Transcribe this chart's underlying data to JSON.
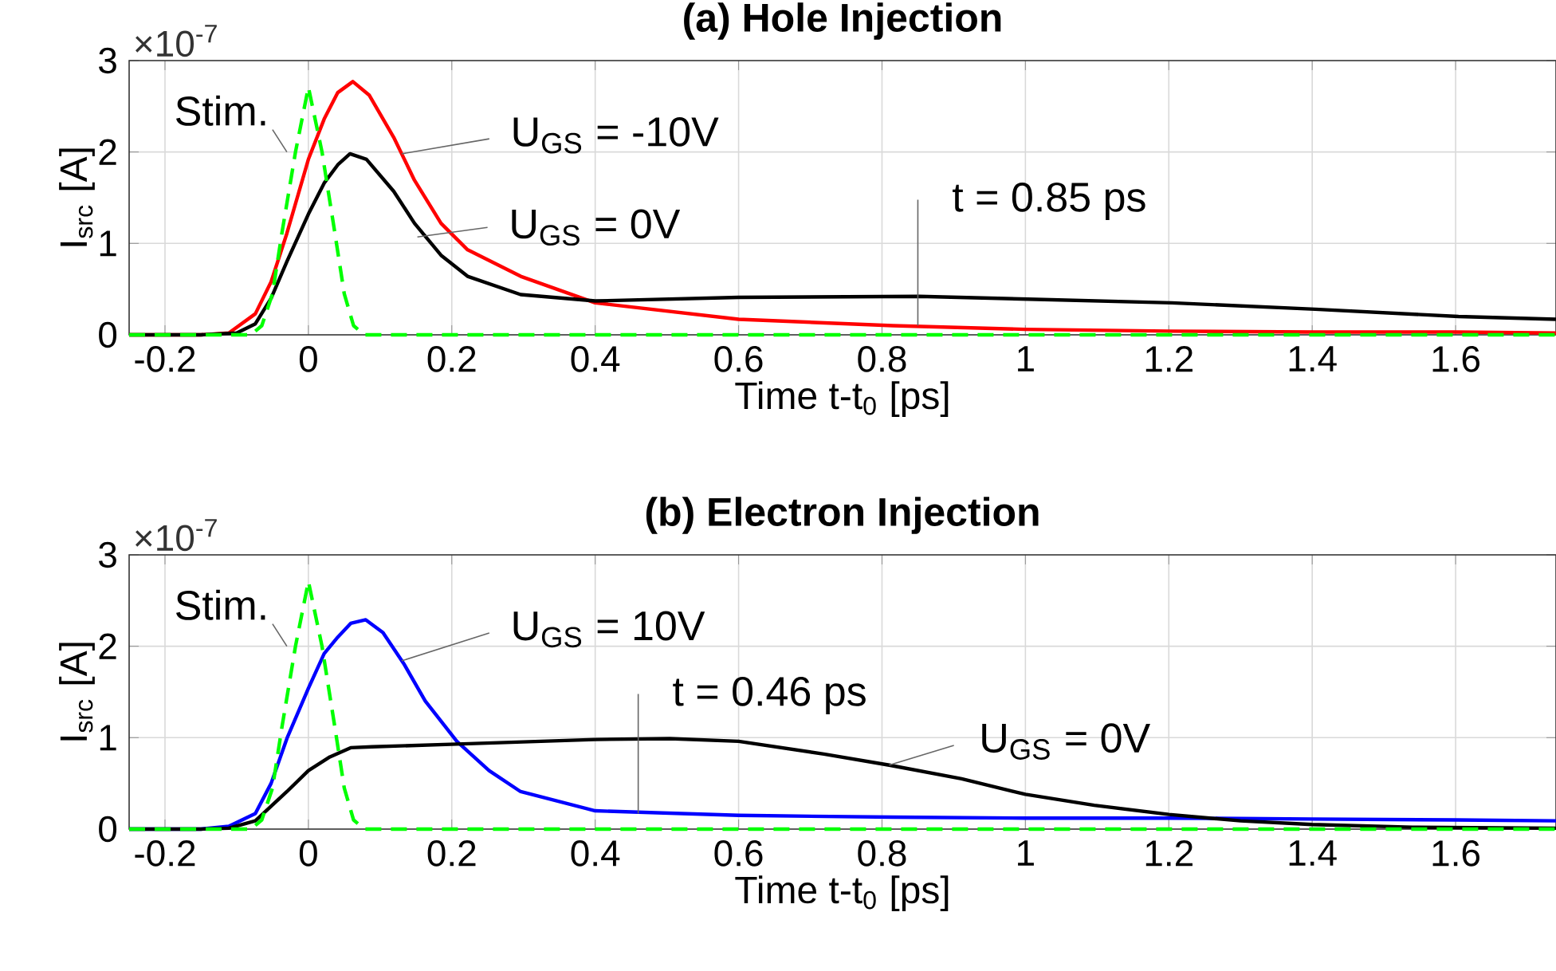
{
  "chart_data": [
    {
      "type": "line",
      "title": "(a) Hole Injection",
      "xlabel": "Time t-t$_{0}$ [ps]",
      "ylabel": "I$_{src}$ [A]",
      "xlim": [
        -0.25,
        1.74
      ],
      "ylim": [
        0,
        3
      ],
      "xticks": [
        -0.2,
        0,
        0.2,
        0.4,
        0.6,
        0.8,
        1,
        1.2,
        1.4,
        1.6
      ],
      "yticks": [
        0,
        1,
        2,
        3
      ],
      "grid": true,
      "annotations": [
        "×10$^{-7}$",
        {
          "text": "Stim.",
          "x": -0.03,
          "y": 2.0
        },
        {
          "text": "U$_{GS}$ = -10V",
          "x": 0.13,
          "y": 1.98
        },
        {
          "text": "U$_{GS}$ = 0V",
          "x": 0.152,
          "y": 1.07
        },
        {
          "text": "t = 0.85 ps",
          "x": 0.85,
          "y": 0.1
        }
      ],
      "series": [
        {
          "color": "#ff0000",
          "line_style": "solid",
          "x": [
            -0.25,
            -0.15,
            -0.111,
            -0.074,
            -0.052,
            -0.03,
            0,
            0.022,
            0.041,
            0.062,
            0.085,
            0.119,
            0.148,
            0.185,
            0.222,
            0.296,
            0.4,
            0.6,
            0.815,
            1.0,
            1.2,
            1.4,
            1.6,
            1.74
          ],
          "values": [
            0,
            0,
            0.02,
            0.23,
            0.58,
            1.11,
            1.92,
            2.36,
            2.65,
            2.77,
            2.62,
            2.16,
            1.69,
            1.22,
            0.93,
            0.64,
            0.35,
            0.17,
            0.1,
            0.06,
            0.04,
            0.03,
            0.03,
            0.02
          ]
        },
        {
          "color": "#000000",
          "line_style": "solid",
          "x": [
            -0.25,
            -0.15,
            -0.1,
            -0.074,
            -0.052,
            -0.03,
            0,
            0.022,
            0.041,
            0.058,
            0.081,
            0.119,
            0.148,
            0.185,
            0.222,
            0.296,
            0.4,
            0.6,
            0.852,
            1.004,
            1.204,
            1.404,
            1.604,
            1.74
          ],
          "values": [
            0,
            0,
            0.02,
            0.12,
            0.4,
            0.8,
            1.32,
            1.66,
            1.86,
            1.98,
            1.92,
            1.57,
            1.22,
            0.87,
            0.64,
            0.44,
            0.37,
            0.41,
            0.42,
            0.39,
            0.35,
            0.28,
            0.2,
            0.17
          ]
        },
        {
          "color": "#00ff00",
          "line_style": "dashed",
          "x": [
            -0.25,
            -0.08,
            -0.065,
            -0.05,
            -0.037,
            -0.018,
            0,
            0.019,
            0.037,
            0.05,
            0.063,
            0.078,
            1.74
          ],
          "values": [
            0,
            0,
            0.1,
            0.45,
            1.11,
            2.0,
            2.71,
            2.0,
            1.11,
            0.45,
            0.1,
            0,
            0
          ]
        }
      ]
    },
    {
      "type": "line",
      "title": "(b) Electron Injection",
      "xlabel": "Time t-t$_{0}$ [ps]",
      "ylabel": "I$_{src}$ [A]",
      "xlim": [
        -0.25,
        1.74
      ],
      "ylim": [
        0,
        3
      ],
      "xticks": [
        -0.2,
        0,
        0.2,
        0.4,
        0.6,
        0.8,
        1,
        1.2,
        1.4,
        1.6
      ],
      "yticks": [
        0,
        1,
        2,
        3
      ],
      "grid": true,
      "annotations": [
        "×10$^{-7}$",
        {
          "text": "Stim.",
          "x": -0.03,
          "y": 2.0
        },
        {
          "text": "U$_{GS}$ = 10V",
          "x": 0.13,
          "y": 1.84
        },
        {
          "text": "t = 0.46 ps",
          "x": 0.46,
          "y": 0.17
        },
        {
          "text": "U$_{GS}$ = 0V",
          "x": 0.81,
          "y": 0.7
        }
      ],
      "series": [
        {
          "color": "#0000ff",
          "line_style": "solid",
          "x": [
            -0.25,
            -0.15,
            -0.111,
            -0.074,
            -0.052,
            -0.03,
            0,
            0.022,
            0.041,
            0.059,
            0.08,
            0.104,
            0.133,
            0.163,
            0.207,
            0.252,
            0.296,
            0.4,
            0.6,
            0.815,
            1.0,
            1.2,
            1.4,
            1.6,
            1.74
          ],
          "values": [
            0,
            0,
            0.03,
            0.17,
            0.5,
            0.99,
            1.54,
            1.92,
            2.1,
            2.25,
            2.29,
            2.15,
            1.81,
            1.4,
            0.96,
            0.64,
            0.41,
            0.2,
            0.15,
            0.13,
            0.12,
            0.12,
            0.11,
            0.1,
            0.09
          ]
        },
        {
          "color": "#000000",
          "line_style": "solid",
          "x": [
            -0.25,
            -0.15,
            -0.111,
            -0.074,
            -0.03,
            0,
            0.03,
            0.059,
            0.089,
            0.207,
            0.4,
            0.504,
            0.6,
            0.719,
            0.81,
            0.911,
            1.0,
            1.096,
            1.2,
            1.3,
            1.4,
            1.54,
            1.74
          ],
          "values": [
            0,
            0,
            0.01,
            0.09,
            0.41,
            0.64,
            0.79,
            0.89,
            0.9,
            0.93,
            0.98,
            0.99,
            0.96,
            0.82,
            0.7,
            0.55,
            0.38,
            0.26,
            0.16,
            0.09,
            0.05,
            0.02,
            0.01
          ]
        },
        {
          "color": "#00ff00",
          "line_style": "dashed",
          "x": [
            -0.25,
            -0.08,
            -0.065,
            -0.05,
            -0.037,
            -0.018,
            0,
            0.019,
            0.037,
            0.05,
            0.063,
            0.078,
            1.74
          ],
          "values": [
            0,
            0,
            0.1,
            0.45,
            1.11,
            2.0,
            2.71,
            2.0,
            1.11,
            0.45,
            0.1,
            0,
            0
          ]
        }
      ]
    }
  ]
}
